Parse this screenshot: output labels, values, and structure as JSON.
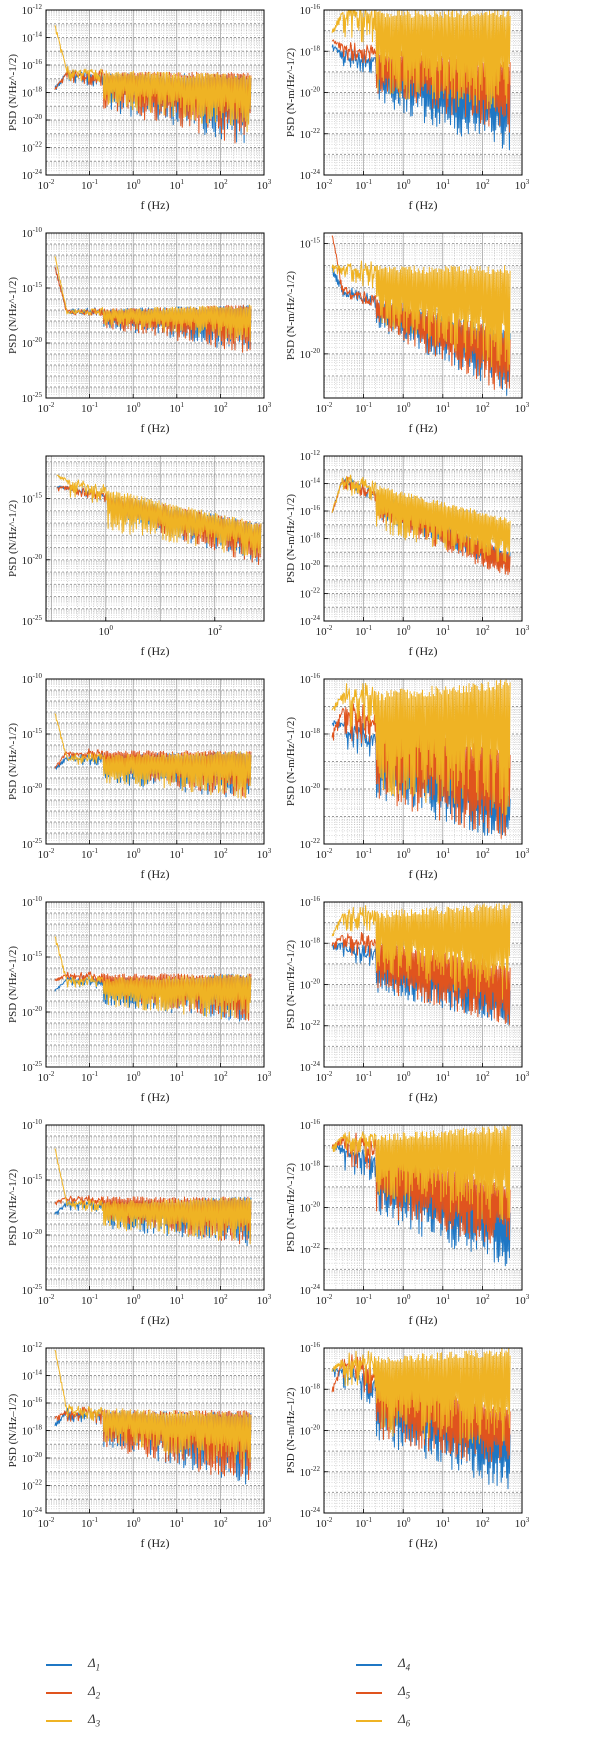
{
  "legend": {
    "left": [
      {
        "label": "Δ",
        "sub": "1",
        "color": "#1f77c4"
      },
      {
        "label": "Δ",
        "sub": "2",
        "color": "#e0541e"
      },
      {
        "label": "Δ",
        "sub": "3",
        "color": "#efb324"
      }
    ],
    "right": [
      {
        "label": "Δ",
        "sub": "4",
        "color": "#1f77c4"
      },
      {
        "label": "Δ",
        "sub": "5",
        "color": "#e0541e"
      },
      {
        "label": "Δ",
        "sub": "6",
        "color": "#efb324"
      }
    ]
  },
  "chart_data": [
    {
      "type": "line",
      "xlabel": "f (Hz)",
      "ylabel": "PSD (N/Hz^-1/2)",
      "xlog": true,
      "ylog": true,
      "xlim": [
        0.01,
        1000
      ],
      "ylim": [
        1e-24,
        1e-12
      ],
      "xticks": [
        "10^-2",
        "10^-1",
        "10^0",
        "10^1",
        "10^2",
        "10^3"
      ],
      "yticks": [
        "10^-24",
        "10^-22",
        "10^-20",
        "10^-18",
        "10^-16",
        "10^-14",
        "10^-12"
      ],
      "grid": true,
      "xmax_data": 500,
      "series": [
        {
          "name": "Δ1",
          "color": "#1f77c4",
          "start": 3e-18,
          "low": 3e-19,
          "high": 3e-17,
          "end_high": 2e-17,
          "end_low": 1e-22
        },
        {
          "name": "Δ2",
          "color": "#e0541e",
          "start": 2e-18,
          "low": 3e-19,
          "high": 3e-17,
          "end_high": 3e-17,
          "end_low": 1e-22
        },
        {
          "name": "Δ3",
          "color": "#efb324",
          "start": 1e-13,
          "low": 5e-19,
          "high": 5e-17,
          "end_high": 2e-17,
          "end_low": 1e-21
        }
      ]
    },
    {
      "type": "line",
      "xlabel": "f (Hz)",
      "ylabel": "PSD (N-m/Hz^-1/2)",
      "xlog": true,
      "ylog": true,
      "xlim": [
        0.01,
        1000
      ],
      "ylim": [
        1e-24,
        1e-16
      ],
      "xticks": [
        "10^-2",
        "10^-1",
        "10^0",
        "10^1",
        "10^2",
        "10^3"
      ],
      "yticks": [
        "10^-24",
        "10^-22",
        "10^-20",
        "10^-18",
        "10^-16"
      ],
      "grid": true,
      "xmax_data": 500,
      "series": [
        {
          "name": "Δ4",
          "color": "#1f77c4",
          "start": 2e-18,
          "low": 1e-20,
          "high": 1e-18,
          "end_high": 3e-20,
          "end_low": 1e-23
        },
        {
          "name": "Δ5",
          "color": "#e0541e",
          "start": 4e-18,
          "low": 3e-20,
          "high": 2e-18,
          "end_high": 3e-19,
          "end_low": 1e-22
        },
        {
          "name": "Δ6",
          "color": "#efb324",
          "start": 1e-17,
          "low": 1e-20,
          "high": 1e-16,
          "end_high": 1e-16,
          "end_low": 1e-21
        }
      ]
    },
    {
      "type": "line",
      "xlabel": "f (Hz)",
      "ylabel": "PSD (N/Hz^-1/2)",
      "xlog": true,
      "ylog": true,
      "xlim": [
        0.01,
        1000
      ],
      "ylim": [
        1e-25,
        1e-10
      ],
      "xticks": [
        "10^-2",
        "10^-1",
        "10^0",
        "10^1",
        "10^2",
        "10^3"
      ],
      "yticks": [
        "10^-25",
        "10^-20",
        "10^-15",
        "10^-10"
      ],
      "grid": true,
      "xmax_data": 500,
      "series": [
        {
          "name": "Δ1",
          "color": "#1f77c4",
          "start": 1e-13,
          "low": 1e-18,
          "high": 1e-17,
          "end_high": 3e-17,
          "end_low": 1e-21
        },
        {
          "name": "Δ2",
          "color": "#e0541e",
          "start": 1e-13,
          "low": 1e-18,
          "high": 1e-17,
          "end_high": 3e-17,
          "end_low": 1e-21
        },
        {
          "name": "Δ3",
          "color": "#efb324",
          "start": 1e-12,
          "low": 1e-18,
          "high": 1e-17,
          "end_high": 3e-17,
          "end_low": 1e-20
        }
      ]
    },
    {
      "type": "line",
      "xlabel": "f (Hz)",
      "ylabel": "PSD (N-m/Hz^-1/2)",
      "xlog": true,
      "ylog": true,
      "xlim": [
        0.01,
        1000
      ],
      "ylim": [
        1e-22,
        3e-15
      ],
      "xticks": [
        "10^-2",
        "10^-1",
        "10^0",
        "10^1",
        "10^2",
        "10^3"
      ],
      "yticks": [
        "10^-20",
        "10^-15"
      ],
      "grid": true,
      "xmax_data": 500,
      "series": [
        {
          "name": "Δ4",
          "color": "#1f77c4",
          "start": 1e-16,
          "low": 1e-18,
          "high": 1e-17,
          "end_high": 1e-19,
          "end_low": 1e-22
        },
        {
          "name": "Δ5",
          "color": "#e0541e",
          "start": 3e-15,
          "low": 1e-18,
          "high": 1e-17,
          "end_high": 1e-19,
          "end_low": 1e-22
        },
        {
          "name": "Δ6",
          "color": "#efb324",
          "start": 1e-16,
          "low": 1e-18,
          "high": 1e-16,
          "end_high": 1e-16,
          "end_low": 1e-21
        }
      ]
    },
    {
      "type": "line",
      "xlabel": "f (Hz)",
      "ylabel": "PSD (N/Hz^-1/2)",
      "xlog": true,
      "ylog": true,
      "xlim": [
        0.08,
        800
      ],
      "ylim": [
        1e-25,
        3e-12
      ],
      "xticks": [
        "10^0",
        "10^2"
      ],
      "yticks": [
        "10^-25",
        "10^-20",
        "10^-15"
      ],
      "grid": true,
      "xmax_data": 700,
      "series": [
        {
          "name": "Δ1",
          "color": "#1f77c4",
          "start": 1e-14,
          "low": 3e-16,
          "high": 1e-14,
          "end_high": 1e-17,
          "end_low": 3e-21
        },
        {
          "name": "Δ2",
          "color": "#e0541e",
          "start": 1e-14,
          "low": 3e-16,
          "high": 1e-14,
          "end_high": 1e-17,
          "end_low": 3e-21
        },
        {
          "name": "Δ3",
          "color": "#efb324",
          "start": 1e-13,
          "low": 1e-17,
          "high": 3e-14,
          "end_high": 1e-17,
          "end_low": 1e-20
        }
      ]
    },
    {
      "type": "line",
      "xlabel": "f (Hz)",
      "ylabel": "PSD (N-m/Hz^-1/2)",
      "xlog": true,
      "ylog": true,
      "xlim": [
        0.01,
        1000
      ],
      "ylim": [
        1e-24,
        1e-12
      ],
      "xticks": [
        "10^-2",
        "10^-1",
        "10^0",
        "10^1",
        "10^2",
        "10^3"
      ],
      "yticks": [
        "10^-24",
        "10^-22",
        "10^-20",
        "10^-18",
        "10^-16",
        "10^-14",
        "10^-12"
      ],
      "grid": true,
      "xmax_data": 500,
      "series": [
        {
          "name": "Δ4",
          "color": "#1f77c4",
          "start": 1e-16,
          "low": 3e-16,
          "high": 3e-14,
          "end_high": 1e-19,
          "end_low": 3e-21
        },
        {
          "name": "Δ5",
          "color": "#e0541e",
          "start": 1e-16,
          "low": 3e-16,
          "high": 3e-14,
          "end_high": 1e-19,
          "end_low": 1e-21
        },
        {
          "name": "Δ6",
          "color": "#efb324",
          "start": 1e-16,
          "low": 1e-17,
          "high": 3e-14,
          "end_high": 3e-17,
          "end_low": 1e-20
        }
      ]
    },
    {
      "type": "line",
      "xlabel": "f (Hz)",
      "ylabel": "PSD (N/Hz^-1/2)",
      "xlog": true,
      "ylog": true,
      "xlim": [
        0.01,
        1000
      ],
      "ylim": [
        1e-25,
        1e-10
      ],
      "xticks": [
        "10^-2",
        "10^-1",
        "10^0",
        "10^1",
        "10^2",
        "10^3"
      ],
      "yticks": [
        "10^-25",
        "10^-20",
        "10^-15",
        "10^-10"
      ],
      "grid": true,
      "xmax_data": 500,
      "series": [
        {
          "name": "Δ1",
          "color": "#1f77c4",
          "start": 1e-18,
          "low": 1e-19,
          "high": 1e-17,
          "end_high": 3e-17,
          "end_low": 1e-21
        },
        {
          "name": "Δ2",
          "color": "#e0541e",
          "start": 1e-18,
          "low": 1e-18,
          "high": 3e-17,
          "end_high": 3e-17,
          "end_low": 1e-21
        },
        {
          "name": "Δ3",
          "color": "#efb324",
          "start": 1e-13,
          "low": 1e-19,
          "high": 1e-17,
          "end_high": 3e-17,
          "end_low": 1e-21
        }
      ]
    },
    {
      "type": "line",
      "xlabel": "f (Hz)",
      "ylabel": "PSD (N-m/Hz^-1/2)",
      "xlog": true,
      "ylog": true,
      "xlim": [
        0.01,
        1000
      ],
      "ylim": [
        1e-22,
        1e-16
      ],
      "xticks": [
        "10^-2",
        "10^-1",
        "10^0",
        "10^1",
        "10^2",
        "10^3"
      ],
      "yticks": [
        "10^-22",
        "10^-20",
        "10^-18",
        "10^-16"
      ],
      "grid": true,
      "xmax_data": 500,
      "series": [
        {
          "name": "Δ4",
          "color": "#1f77c4",
          "start": 3e-18,
          "low": 1e-20,
          "high": 3e-18,
          "end_high": 1e-20,
          "end_low": 1e-22
        },
        {
          "name": "Δ5",
          "color": "#e0541e",
          "start": 1e-18,
          "low": 1e-20,
          "high": 1e-17,
          "end_high": 3e-19,
          "end_low": 1e-22
        },
        {
          "name": "Δ6",
          "color": "#efb324",
          "start": 1e-17,
          "low": 1e-20,
          "high": 3e-17,
          "end_high": 1e-16,
          "end_low": 1e-21
        }
      ]
    },
    {
      "type": "line",
      "xlabel": "f (Hz)",
      "ylabel": "PSD (N/Hz^-1/2)",
      "xlog": true,
      "ylog": true,
      "xlim": [
        0.01,
        1000
      ],
      "ylim": [
        1e-25,
        1e-10
      ],
      "xticks": [
        "10^-2",
        "10^-1",
        "10^0",
        "10^1",
        "10^2",
        "10^3"
      ],
      "yticks": [
        "10^-25",
        "10^-20",
        "10^-15",
        "10^-10"
      ],
      "grid": true,
      "xmax_data": 500,
      "series": [
        {
          "name": "Δ1",
          "color": "#1f77c4",
          "start": 1e-18,
          "low": 1e-19,
          "high": 1e-17,
          "end_high": 3e-17,
          "end_low": 1e-21
        },
        {
          "name": "Δ2",
          "color": "#e0541e",
          "start": 1e-17,
          "low": 1e-18,
          "high": 3e-17,
          "end_high": 3e-17,
          "end_low": 1e-21
        },
        {
          "name": "Δ3",
          "color": "#efb324",
          "start": 1e-13,
          "low": 1e-19,
          "high": 1e-17,
          "end_high": 3e-17,
          "end_low": 1e-21
        }
      ]
    },
    {
      "type": "line",
      "xlabel": "f (Hz)",
      "ylabel": "PSD (N-m/Hz^-1/2)",
      "xlog": true,
      "ylog": true,
      "xlim": [
        0.01,
        1000
      ],
      "ylim": [
        1e-24,
        1e-16
      ],
      "xticks": [
        "10^-2",
        "10^-1",
        "10^0",
        "10^1",
        "10^2",
        "10^3"
      ],
      "yticks": [
        "10^-24",
        "10^-22",
        "10^-20",
        "10^-18",
        "10^-16"
      ],
      "grid": true,
      "xmax_data": 500,
      "series": [
        {
          "name": "Δ4",
          "color": "#1f77c4",
          "start": 1e-18,
          "low": 1e-20,
          "high": 1e-18,
          "end_high": 1e-20,
          "end_low": 1e-22
        },
        {
          "name": "Δ5",
          "color": "#e0541e",
          "start": 1e-18,
          "low": 1e-20,
          "high": 3e-18,
          "end_high": 1e-19,
          "end_low": 1e-22
        },
        {
          "name": "Δ6",
          "color": "#efb324",
          "start": 3e-18,
          "low": 1e-19,
          "high": 3e-17,
          "end_high": 1e-16,
          "end_low": 1e-21
        }
      ]
    },
    {
      "type": "line",
      "xlabel": "f (Hz)",
      "ylabel": "PSD (N/Hz^-1/2)",
      "xlog": true,
      "ylog": true,
      "xlim": [
        0.01,
        1000
      ],
      "ylim": [
        1e-25,
        1e-10
      ],
      "xticks": [
        "10^-2",
        "10^-1",
        "10^0",
        "10^1",
        "10^2",
        "10^3"
      ],
      "yticks": [
        "10^-25",
        "10^-20",
        "10^-15",
        "10^-10"
      ],
      "grid": true,
      "xmax_data": 500,
      "series": [
        {
          "name": "Δ1",
          "color": "#1f77c4",
          "start": 1e-18,
          "low": 1e-19,
          "high": 1e-17,
          "end_high": 3e-17,
          "end_low": 1e-21
        },
        {
          "name": "Δ2",
          "color": "#e0541e",
          "start": 1e-17,
          "low": 1e-18,
          "high": 3e-17,
          "end_high": 3e-17,
          "end_low": 1e-21
        },
        {
          "name": "Δ3",
          "color": "#efb324",
          "start": 1e-12,
          "low": 1e-19,
          "high": 1e-17,
          "end_high": 3e-17,
          "end_low": 1e-21
        }
      ]
    },
    {
      "type": "line",
      "xlabel": "f (Hz)",
      "ylabel": "PSD (N-m/Hz^-1/2)",
      "xlog": true,
      "ylog": true,
      "xlim": [
        0.01,
        1000
      ],
      "ylim": [
        1e-24,
        1e-16
      ],
      "xticks": [
        "10^-2",
        "10^-1",
        "10^0",
        "10^1",
        "10^2",
        "10^3"
      ],
      "yticks": [
        "10^-24",
        "10^-22",
        "10^-20",
        "10^-18",
        "10^-16"
      ],
      "grid": true,
      "xmax_data": 500,
      "series": [
        {
          "name": "Δ4",
          "color": "#1f77c4",
          "start": 1e-17,
          "low": 1e-20,
          "high": 1e-17,
          "end_high": 1e-20,
          "end_low": 1e-23
        },
        {
          "name": "Δ5",
          "color": "#e0541e",
          "start": 1e-17,
          "low": 1e-20,
          "high": 3e-17,
          "end_high": 1e-19,
          "end_low": 1e-22
        },
        {
          "name": "Δ6",
          "color": "#efb324",
          "start": 1e-17,
          "low": 1e-19,
          "high": 3e-17,
          "end_high": 1e-16,
          "end_low": 1e-21
        }
      ]
    },
    {
      "type": "line",
      "xlabel": "f (Hz)",
      "ylabel": "PSD (N/Hz–1/2)",
      "xlog": true,
      "ylog": true,
      "xlim": [
        0.01,
        1000
      ],
      "ylim": [
        1e-24,
        1e-12
      ],
      "xticks": [
        "10^-2",
        "10^-1",
        "10^0",
        "10^1",
        "10^2",
        "10^3"
      ],
      "yticks": [
        "10^-24",
        "10^-22",
        "10^-20",
        "10^-18",
        "10^-16",
        "10^-14",
        "10^-12"
      ],
      "grid": true,
      "xmax_data": 500,
      "series": [
        {
          "name": "Δ1",
          "color": "#1f77c4",
          "start": 3e-18,
          "low": 3e-19,
          "high": 3e-17,
          "end_high": 2e-17,
          "end_low": 1e-22
        },
        {
          "name": "Δ2",
          "color": "#e0541e",
          "start": 1e-17,
          "low": 3e-19,
          "high": 3e-17,
          "end_high": 3e-17,
          "end_low": 1e-22
        },
        {
          "name": "Δ3",
          "color": "#efb324",
          "start": 1e-12,
          "low": 5e-19,
          "high": 5e-17,
          "end_high": 2e-17,
          "end_low": 1e-21
        }
      ]
    },
    {
      "type": "line",
      "xlabel": "f (Hz)",
      "ylabel": "PSD (N-m/Hz–1/2)",
      "xlog": true,
      "ylog": true,
      "xlim": [
        0.01,
        1000
      ],
      "ylim": [
        1e-24,
        1e-16
      ],
      "xticks": [
        "10^-2",
        "10^-1",
        "10^0",
        "10^1",
        "10^2",
        "10^3"
      ],
      "yticks": [
        "10^-24",
        "10^-22",
        "10^-20",
        "10^-18",
        "10^-16"
      ],
      "grid": true,
      "xmax_data": 500,
      "series": [
        {
          "name": "Δ4",
          "color": "#1f77c4",
          "start": 1e-17,
          "low": 1e-20,
          "high": 1e-17,
          "end_high": 1e-20,
          "end_low": 1e-23
        },
        {
          "name": "Δ5",
          "color": "#e0541e",
          "start": 1e-18,
          "low": 1e-20,
          "high": 3e-17,
          "end_high": 1e-19,
          "end_low": 1e-22
        },
        {
          "name": "Δ6",
          "color": "#efb324",
          "start": 1e-17,
          "low": 1e-20,
          "high": 3e-17,
          "end_high": 1e-16,
          "end_low": 1e-21
        }
      ]
    }
  ]
}
